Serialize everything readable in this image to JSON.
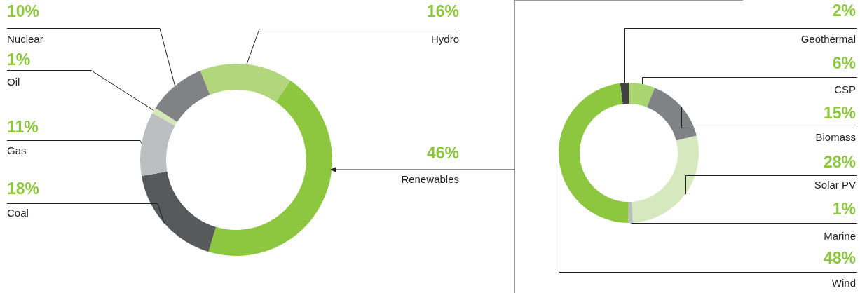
{
  "chart_data": [
    {
      "type": "donut",
      "categories": [
        "Hydro",
        "Renewables",
        "Coal",
        "Gas",
        "Oil",
        "Nuclear"
      ],
      "values": [
        16,
        46,
        18,
        11,
        1,
        10
      ],
      "value_labels": [
        "16%",
        "46%",
        "18%",
        "11%",
        "1%",
        "10%"
      ],
      "colors": [
        "#b2d67c",
        "#8dc63f",
        "#58595b",
        "#bcbec0",
        "#d4e7b8",
        "#808285"
      ]
    },
    {
      "type": "donut",
      "categories": [
        "Geothermal",
        "CSP",
        "Biomass",
        "Solar PV",
        "Marine",
        "Wind"
      ],
      "values": [
        2,
        6,
        15,
        28,
        1,
        48
      ],
      "value_labels": [
        "2%",
        "6%",
        "15%",
        "28%",
        "1%",
        "48%"
      ],
      "colors": [
        "#414042",
        "#a9d571",
        "#808285",
        "#d6e8bd",
        "#bcbec0",
        "#8dc63f"
      ]
    }
  ]
}
